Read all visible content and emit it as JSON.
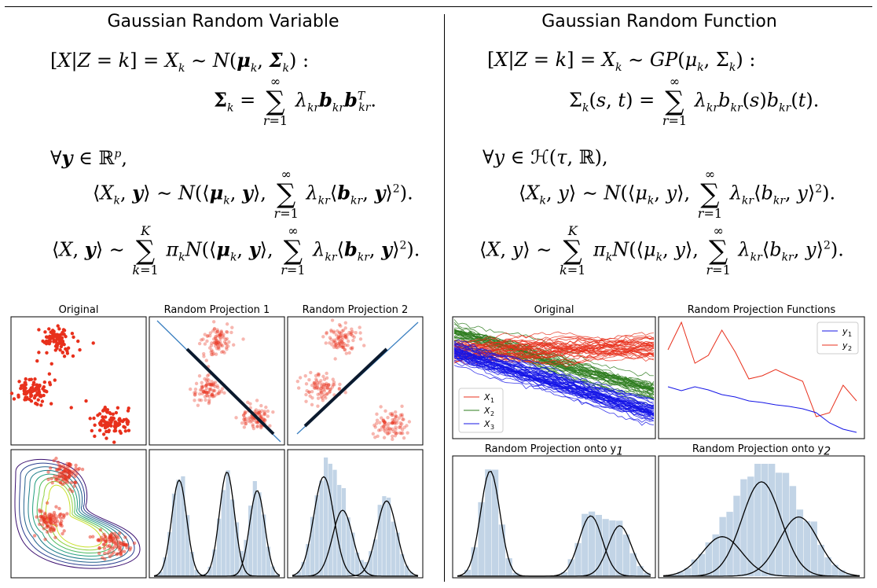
{
  "left": {
    "heading": "Gaussian Random Variable",
    "line1_lhs": "[X|Z = k] = X",
    "line1_rhs": "~ N(μ",
    "line1_tail": ", Σ",
    "line1_end": ") :",
    "line2": "Σ",
    "line2_end": "λ",
    "line2_tail": "b",
    "line3": "∀y ∈ ℝ",
    "line3_sup": "p",
    "line4": "⟨X",
    "line5": "⟨X, y⟩ ~",
    "sum_top_inf": "∞",
    "sum_bottom_r": "r=1",
    "sum_top_K": "K",
    "sum_bottom_k": "k=1"
  },
  "right": {
    "heading": "Gaussian Random Function",
    "line1": "[X|Z = k] = X",
    "line1_b": "~ GP(μ",
    "line1_c": ", Σ",
    "line1_d": ") :",
    "line2": "Σ",
    "line2_b": "(s, t) =",
    "line3": "∀y ∈ ℋ(τ, ℝ),"
  },
  "plots": {
    "left_titles": [
      "Original",
      "Random Projection 1",
      "Random Projection 2"
    ],
    "right_titles": [
      "Original",
      "Random Projection Functions",
      "Random Projection onto y",
      "Random Projection onto y"
    ],
    "right_title_subs": [
      "1",
      "2"
    ],
    "legend_x": [
      "X",
      "X",
      "X"
    ],
    "legend_x_subs": [
      "1",
      "2",
      "3"
    ],
    "legend_y": [
      "y",
      "y"
    ],
    "legend_y_subs": [
      "1",
      "2"
    ]
  },
  "colors": {
    "red": "#e8301c",
    "green": "#2e7d1e",
    "blue": "#1414e6",
    "hist": "#c2d4e6",
    "line": "#3a7fc0"
  }
}
